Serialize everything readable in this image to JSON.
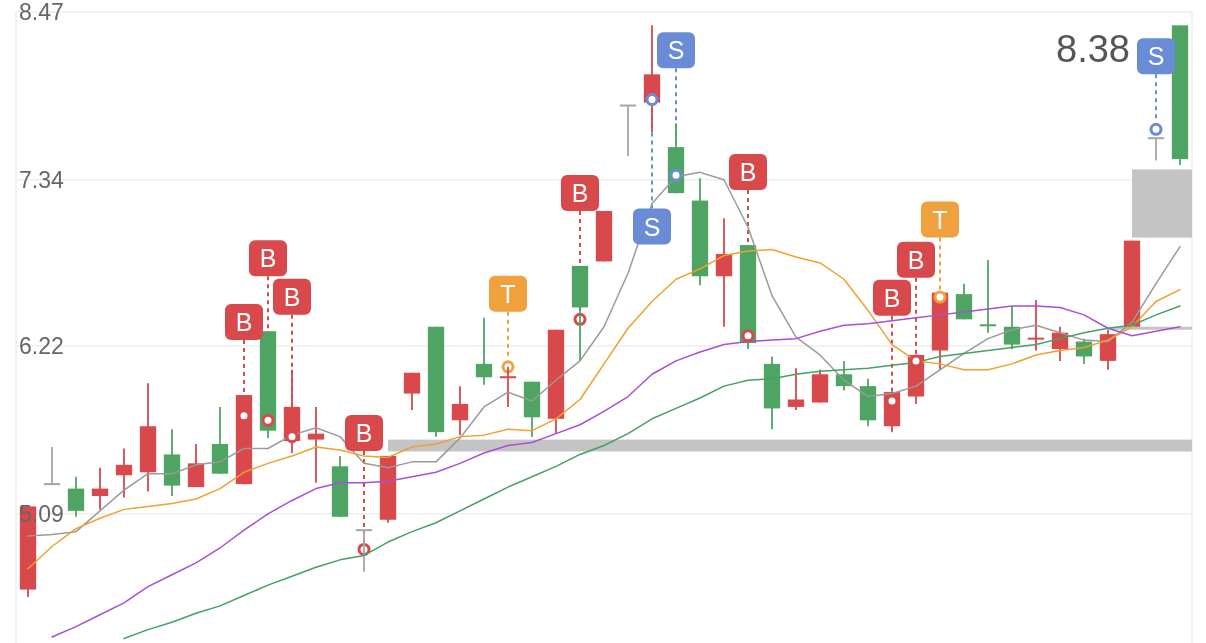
{
  "chart_data": {
    "type": "candlestick",
    "categories": [
      null,
      null,
      null,
      null,
      null,
      null,
      null,
      null,
      null,
      null,
      null,
      null,
      null,
      null,
      null,
      null,
      null,
      null,
      null,
      null,
      null,
      null,
      null,
      null,
      null,
      null,
      null,
      null,
      null,
      null,
      null,
      null,
      null,
      null,
      null,
      null,
      null,
      null,
      null,
      null,
      null,
      null,
      null,
      null,
      null,
      null,
      null,
      null,
      null
    ],
    "ohlc": [
      [
        4.58,
        5.14,
        4.53,
        5.14
      ],
      [
        5.29,
        5.54,
        5.29,
        5.29
      ],
      [
        5.26,
        5.34,
        5.07,
        5.11
      ],
      [
        5.21,
        5.4,
        5.12,
        5.26
      ],
      [
        5.35,
        5.53,
        5.2,
        5.42
      ],
      [
        5.37,
        5.97,
        5.24,
        5.68
      ],
      [
        5.49,
        5.66,
        5.21,
        5.28
      ],
      [
        5.27,
        5.56,
        5.27,
        5.43
      ],
      [
        5.56,
        5.81,
        5.36,
        5.36
      ],
      [
        5.29,
        5.89,
        5.29,
        5.89
      ],
      [
        6.32,
        6.32,
        5.6,
        5.65
      ],
      [
        5.58,
        6.06,
        5.5,
        5.81
      ],
      [
        5.59,
        5.81,
        5.3,
        5.63
      ],
      [
        5.41,
        5.48,
        5.07,
        5.07
      ],
      [
        4.98,
        4.98,
        4.7,
        4.98
      ],
      [
        5.05,
        5.48,
        5.03,
        5.48
      ],
      [
        5.9,
        6.04,
        5.79,
        6.04
      ],
      [
        6.35,
        6.35,
        5.61,
        5.64
      ],
      [
        5.72,
        5.95,
        5.62,
        5.83
      ],
      [
        6.1,
        6.41,
        5.96,
        6.01
      ],
      [
        6.0,
        6.08,
        5.81,
        6.01
      ],
      [
        5.98,
        5.98,
        5.61,
        5.74
      ],
      [
        5.73,
        6.33,
        5.63,
        6.33
      ],
      [
        6.76,
        6.76,
        6.12,
        6.48
      ],
      [
        6.79,
        7.13,
        6.79,
        7.13
      ],
      [
        7.84,
        7.84,
        7.5,
        7.84
      ],
      [
        7.86,
        8.38,
        7.66,
        8.05
      ],
      [
        7.56,
        7.72,
        7.25,
        7.25
      ],
      [
        7.2,
        7.35,
        6.63,
        6.69
      ],
      [
        6.69,
        7.08,
        6.35,
        6.84
      ],
      [
        6.9,
        6.9,
        6.2,
        6.24
      ],
      [
        6.1,
        6.15,
        5.66,
        5.8
      ],
      [
        5.81,
        6.07,
        5.79,
        5.86
      ],
      [
        5.84,
        6.06,
        5.84,
        6.03
      ],
      [
        6.03,
        6.12,
        5.92,
        5.95
      ],
      [
        5.95,
        6.0,
        5.68,
        5.72
      ],
      [
        5.68,
        5.91,
        5.64,
        5.91
      ],
      [
        5.88,
        6.16,
        5.83,
        6.16
      ],
      [
        6.19,
        6.58,
        6.06,
        6.58
      ],
      [
        6.57,
        6.64,
        6.4,
        6.4
      ],
      [
        6.36,
        6.8,
        6.31,
        6.35
      ],
      [
        6.35,
        6.49,
        6.2,
        6.23
      ],
      [
        6.26,
        6.53,
        6.19,
        6.27
      ],
      [
        6.2,
        6.35,
        6.12,
        6.31
      ],
      [
        6.25,
        6.27,
        6.1,
        6.15
      ],
      [
        6.12,
        6.33,
        6.06,
        6.3
      ],
      [
        6.35,
        6.93,
        6.35,
        6.93
      ],
      [
        7.62,
        7.62,
        7.47,
        7.62
      ],
      [
        8.38,
        8.38,
        7.44,
        7.48
      ]
    ],
    "colors": [
      "#d9484a",
      "#a6a6a6",
      "#4ea563",
      "#d9484a",
      "#d9484a",
      "#d9484a",
      "#4ea563",
      "#d9484a",
      "#4ea563",
      "#d9484a",
      "#4ea563",
      "#d9484a",
      "#d9484a",
      "#4ea563",
      "#a6a6a6",
      "#d9484a",
      "#d9484a",
      "#4ea563",
      "#d9484a",
      "#4ea563",
      "#d9484a",
      "#4ea563",
      "#d9484a",
      "#4ea563",
      "#d9484a",
      "#a6a6a6",
      "#d9484a",
      "#4ea563",
      "#4ea563",
      "#d9484a",
      "#4ea563",
      "#4ea563",
      "#d9484a",
      "#d9484a",
      "#4ea563",
      "#4ea563",
      "#d9484a",
      "#d9484a",
      "#d9484a",
      "#4ea563",
      "#4ea563",
      "#4ea563",
      "#d9484a",
      "#d9484a",
      "#4ea563",
      "#d9484a",
      "#d9484a",
      "#a6a6a6",
      "#4ea563"
    ],
    "ylim": [
      4.22,
      8.47
    ],
    "yticks": [
      5.09,
      6.22,
      7.34,
      8.47
    ],
    "grid": "y",
    "bands": [
      {
        "axis": "y",
        "from": 5.51,
        "to": 5.59,
        "color": "#c4c4c4"
      },
      {
        "axis": "y",
        "from": 6.95,
        "to": 7.41,
        "color": "#c4c4c4"
      },
      {
        "axis": "y",
        "from": 6.33,
        "to": 6.35,
        "color": "#c4c4c4"
      }
    ],
    "series": [
      {
        "type": "line",
        "color": "#9a9a9a",
        "values": [
          4.94,
          4.95,
          4.97,
          5.11,
          5.25,
          5.36,
          5.36,
          5.42,
          5.44,
          5.53,
          5.53,
          5.62,
          5.67,
          5.61,
          5.43,
          5.4,
          5.44,
          5.44,
          5.6,
          5.81,
          5.91,
          5.85,
          5.99,
          6.12,
          6.35,
          6.71,
          7.18,
          7.36,
          7.39,
          7.34,
          7.02,
          6.56,
          6.28,
          6.16,
          5.99,
          5.88,
          5.9,
          5.95,
          6.06,
          6.17,
          6.27,
          6.33,
          6.36,
          6.31,
          6.26,
          6.25,
          6.38,
          6.64,
          6.89
        ]
      },
      {
        "type": "line",
        "color": "#f0a030",
        "values": [
          4.72,
          4.87,
          4.99,
          5.06,
          5.12,
          5.14,
          5.16,
          5.19,
          5.26,
          5.37,
          5.43,
          5.48,
          5.54,
          5.52,
          5.48,
          5.47,
          5.54,
          5.56,
          5.61,
          5.62,
          5.66,
          5.65,
          5.73,
          5.86,
          6.1,
          6.34,
          6.52,
          6.67,
          6.74,
          6.83,
          6.86,
          6.87,
          6.82,
          6.78,
          6.67,
          6.46,
          6.23,
          6.12,
          6.1,
          6.06,
          6.06,
          6.1,
          6.16,
          6.19,
          6.21,
          6.26,
          6.35,
          6.52,
          6.6
        ]
      },
      {
        "type": "line",
        "color": "#a84fd8",
        "values": [
          null,
          4.26,
          4.33,
          4.41,
          4.49,
          4.6,
          4.68,
          4.76,
          4.86,
          4.98,
          5.09,
          5.18,
          5.26,
          5.3,
          5.3,
          5.31,
          5.34,
          5.37,
          5.43,
          5.5,
          5.55,
          5.57,
          5.63,
          5.69,
          5.78,
          5.88,
          6.03,
          6.12,
          6.18,
          6.23,
          6.25,
          6.26,
          6.27,
          6.32,
          6.36,
          6.37,
          6.39,
          6.41,
          6.43,
          6.45,
          6.47,
          6.49,
          6.49,
          6.48,
          6.43,
          6.34,
          6.29,
          6.32,
          6.35
        ]
      },
      {
        "type": "line",
        "color": "#46a064",
        "values": [
          null,
          null,
          null,
          null,
          4.25,
          4.31,
          4.36,
          4.42,
          4.47,
          4.54,
          4.61,
          4.67,
          4.73,
          4.78,
          4.81,
          4.9,
          4.97,
          5.03,
          5.11,
          5.19,
          5.27,
          5.34,
          5.41,
          5.49,
          5.55,
          5.63,
          5.73,
          5.8,
          5.87,
          5.95,
          5.99,
          6.0,
          6.03,
          6.05,
          6.06,
          6.07,
          6.09,
          6.11,
          6.15,
          6.17,
          6.19,
          6.21,
          6.23,
          6.27,
          6.31,
          6.34,
          6.36,
          6.43,
          6.49
        ]
      },
      {
        "type": "scatter",
        "color": "#d9484a",
        "marker": "circle",
        "values": [
          null,
          null,
          null,
          null,
          null,
          null,
          null,
          null,
          null,
          5.75,
          5.72,
          5.61,
          null,
          null,
          4.85,
          null,
          null,
          null,
          null,
          null,
          null,
          null,
          null,
          6.4,
          null,
          null,
          null,
          null,
          null,
          null,
          6.29,
          null,
          null,
          null,
          null,
          null,
          5.85,
          6.12,
          null,
          null,
          null,
          null,
          null,
          null,
          null,
          null,
          null,
          null,
          null
        ],
        "value_labels": [
          null,
          null,
          null,
          null,
          null,
          null,
          null,
          null,
          null,
          "B",
          "B",
          "B",
          null,
          null,
          "B",
          null,
          null,
          null,
          null,
          null,
          null,
          null,
          null,
          "B",
          null,
          null,
          null,
          null,
          null,
          null,
          "B",
          null,
          null,
          null,
          null,
          null,
          "B",
          "B",
          null,
          null,
          null,
          null,
          null,
          null,
          null,
          null,
          null,
          null,
          null
        ]
      },
      {
        "type": "scatter",
        "color": "#6a8bd6",
        "marker": "circle",
        "values": [
          null,
          null,
          null,
          null,
          null,
          null,
          null,
          null,
          null,
          null,
          null,
          null,
          null,
          null,
          null,
          null,
          null,
          null,
          null,
          null,
          null,
          null,
          null,
          null,
          null,
          null,
          7.88,
          7.37,
          null,
          null,
          null,
          null,
          null,
          null,
          null,
          null,
          null,
          null,
          null,
          null,
          null,
          null,
          null,
          null,
          null,
          null,
          null,
          7.68,
          null
        ],
        "value_labels": [
          null,
          null,
          null,
          null,
          null,
          null,
          null,
          null,
          null,
          null,
          null,
          null,
          null,
          null,
          null,
          null,
          null,
          null,
          null,
          null,
          null,
          null,
          null,
          null,
          null,
          null,
          "S",
          "S",
          null,
          null,
          null,
          null,
          null,
          null,
          null,
          null,
          null,
          null,
          null,
          null,
          null,
          null,
          null,
          null,
          null,
          null,
          null,
          "S",
          null
        ]
      },
      {
        "type": "scatter",
        "color": "#f0a03c",
        "marker": "circle",
        "values": [
          null,
          null,
          null,
          null,
          null,
          null,
          null,
          null,
          null,
          null,
          null,
          null,
          null,
          null,
          null,
          null,
          null,
          null,
          null,
          null,
          6.08,
          null,
          null,
          null,
          null,
          null,
          null,
          null,
          null,
          null,
          null,
          null,
          null,
          null,
          null,
          null,
          null,
          null,
          6.55,
          null,
          null,
          null,
          null,
          null,
          null,
          null,
          null,
          null,
          null
        ],
        "value_labels": [
          null,
          null,
          null,
          null,
          null,
          null,
          null,
          null,
          null,
          null,
          null,
          null,
          null,
          null,
          null,
          null,
          null,
          null,
          null,
          null,
          "T",
          null,
          null,
          null,
          null,
          null,
          null,
          null,
          null,
          null,
          null,
          null,
          null,
          null,
          null,
          null,
          null,
          null,
          "T",
          null,
          null,
          null,
          null,
          null,
          null,
          null,
          null,
          null,
          null
        ]
      }
    ],
    "annotations": [
      "8.38"
    ]
  }
}
